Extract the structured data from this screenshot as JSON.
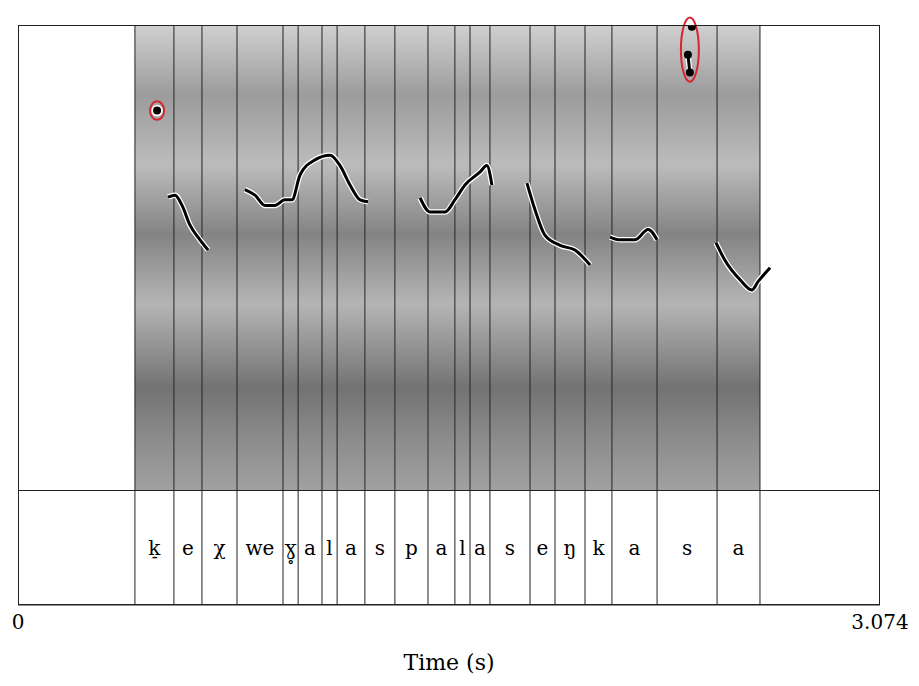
{
  "chart_data": {
    "type": "spectrogram",
    "x_label": "Time (s)",
    "xlim": [
      0,
      3.074
    ],
    "xticks": [
      0,
      3.074
    ],
    "ylim": [
      0,
      500
    ],
    "tick_labels": "x",
    "segments": [
      {
        "label": "k̠",
        "start": 0.417,
        "end": 0.556
      },
      {
        "label": "e",
        "start": 0.556,
        "end": 0.656
      },
      {
        "label": "χ",
        "start": 0.656,
        "end": 0.781
      },
      {
        "label": "we",
        "start": 0.781,
        "end": 0.945
      },
      {
        "label": "ɣ̥",
        "start": 0.945,
        "end": 0.999
      },
      {
        "label": "a",
        "start": 0.999,
        "end": 1.084
      },
      {
        "label": "l",
        "start": 1.084,
        "end": 1.138
      },
      {
        "label": "a",
        "start": 1.138,
        "end": 1.237
      },
      {
        "label": "s",
        "start": 1.237,
        "end": 1.344
      },
      {
        "label": "p",
        "start": 1.344,
        "end": 1.462
      },
      {
        "label": "a",
        "start": 1.462,
        "end": 1.558
      },
      {
        "label": "l",
        "start": 1.558,
        "end": 1.612
      },
      {
        "label": "a",
        "start": 1.612,
        "end": 1.683
      },
      {
        "label": "s",
        "start": 1.683,
        "end": 1.826
      },
      {
        "label": "e",
        "start": 1.826,
        "end": 1.915
      },
      {
        "label": "ŋ",
        "start": 1.915,
        "end": 2.022
      },
      {
        "label": "k",
        "start": 2.022,
        "end": 2.118
      },
      {
        "label": "a",
        "start": 2.118,
        "end": 2.279
      },
      {
        "label": "s",
        "start": 2.279,
        "end": 2.493
      },
      {
        "label": "a",
        "start": 2.493,
        "end": 2.646
      }
    ],
    "series": [
      {
        "color": "#000000",
        "x": [
          0.535,
          0.56,
          0.585,
          0.613,
          0.649,
          0.678
        ],
        "values": [
          315,
          317,
          306,
          285,
          269,
          258
        ]
      },
      {
        "color": "#000000",
        "x": [
          0.809,
          0.845,
          0.881,
          0.916,
          0.952,
          0.977,
          1.006,
          1.059,
          1.113,
          1.148,
          1.184,
          1.22,
          1.248
        ],
        "values": [
          323,
          317,
          306,
          306,
          312,
          312,
          339,
          355,
          360,
          349,
          328,
          312,
          310
        ]
      },
      {
        "color": "#000000",
        "x": [
          1.434,
          1.469,
          1.523,
          1.558,
          1.594,
          1.648,
          1.672,
          1.69
        ],
        "values": [
          314,
          299,
          299,
          312,
          328,
          342,
          349,
          328
        ]
      },
      {
        "color": "#000000",
        "x": [
          1.815,
          1.844,
          1.879,
          1.933,
          1.986,
          2.04
        ],
        "values": [
          330,
          301,
          274,
          263,
          258,
          242
        ]
      },
      {
        "color": "#000000",
        "x": [
          2.111,
          2.147,
          2.2,
          2.247,
          2.279
        ],
        "values": [
          272,
          269,
          269,
          280,
          269
        ]
      },
      {
        "color": "#000000",
        "x": [
          2.489,
          2.521,
          2.575,
          2.617,
          2.639,
          2.682
        ],
        "values": [
          266,
          247,
          226,
          215,
          224,
          239
        ]
      },
      {
        "color": "#000000",
        "marker": "circled",
        "x": [
          0.496
        ],
        "values": [
          408
        ]
      },
      {
        "color": "#000000",
        "marker": "circled",
        "x": [
          2.389,
          2.396,
          2.4,
          2.403
        ],
        "values": [
          468,
          449,
          null,
          498
        ]
      }
    ]
  }
}
